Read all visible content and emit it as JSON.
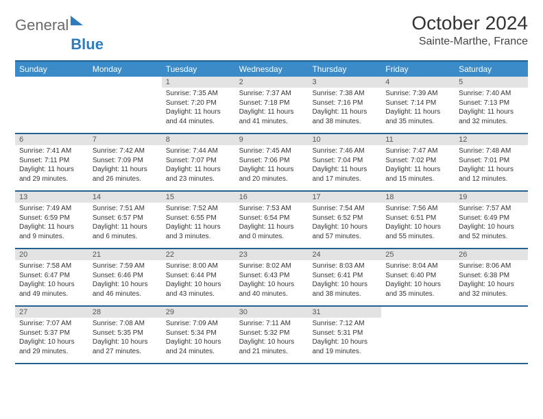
{
  "logo": {
    "general": "General",
    "blue": "Blue"
  },
  "title": "October 2024",
  "location": "Sainte-Marthe, France",
  "day_headers": [
    "Sunday",
    "Monday",
    "Tuesday",
    "Wednesday",
    "Thursday",
    "Friday",
    "Saturday"
  ],
  "colors": {
    "header_bar": "#3b8bc8",
    "rule": "#236090",
    "daynum_bg": "#e3e3e3",
    "logo_blue": "#2d7cc0"
  },
  "weeks": [
    [
      {
        "n": "",
        "sr": "",
        "ss": "",
        "dl": ""
      },
      {
        "n": "",
        "sr": "",
        "ss": "",
        "dl": ""
      },
      {
        "n": "1",
        "sr": "Sunrise: 7:35 AM",
        "ss": "Sunset: 7:20 PM",
        "dl": "Daylight: 11 hours and 44 minutes."
      },
      {
        "n": "2",
        "sr": "Sunrise: 7:37 AM",
        "ss": "Sunset: 7:18 PM",
        "dl": "Daylight: 11 hours and 41 minutes."
      },
      {
        "n": "3",
        "sr": "Sunrise: 7:38 AM",
        "ss": "Sunset: 7:16 PM",
        "dl": "Daylight: 11 hours and 38 minutes."
      },
      {
        "n": "4",
        "sr": "Sunrise: 7:39 AM",
        "ss": "Sunset: 7:14 PM",
        "dl": "Daylight: 11 hours and 35 minutes."
      },
      {
        "n": "5",
        "sr": "Sunrise: 7:40 AM",
        "ss": "Sunset: 7:13 PM",
        "dl": "Daylight: 11 hours and 32 minutes."
      }
    ],
    [
      {
        "n": "6",
        "sr": "Sunrise: 7:41 AM",
        "ss": "Sunset: 7:11 PM",
        "dl": "Daylight: 11 hours and 29 minutes."
      },
      {
        "n": "7",
        "sr": "Sunrise: 7:42 AM",
        "ss": "Sunset: 7:09 PM",
        "dl": "Daylight: 11 hours and 26 minutes."
      },
      {
        "n": "8",
        "sr": "Sunrise: 7:44 AM",
        "ss": "Sunset: 7:07 PM",
        "dl": "Daylight: 11 hours and 23 minutes."
      },
      {
        "n": "9",
        "sr": "Sunrise: 7:45 AM",
        "ss": "Sunset: 7:06 PM",
        "dl": "Daylight: 11 hours and 20 minutes."
      },
      {
        "n": "10",
        "sr": "Sunrise: 7:46 AM",
        "ss": "Sunset: 7:04 PM",
        "dl": "Daylight: 11 hours and 17 minutes."
      },
      {
        "n": "11",
        "sr": "Sunrise: 7:47 AM",
        "ss": "Sunset: 7:02 PM",
        "dl": "Daylight: 11 hours and 15 minutes."
      },
      {
        "n": "12",
        "sr": "Sunrise: 7:48 AM",
        "ss": "Sunset: 7:01 PM",
        "dl": "Daylight: 11 hours and 12 minutes."
      }
    ],
    [
      {
        "n": "13",
        "sr": "Sunrise: 7:49 AM",
        "ss": "Sunset: 6:59 PM",
        "dl": "Daylight: 11 hours and 9 minutes."
      },
      {
        "n": "14",
        "sr": "Sunrise: 7:51 AM",
        "ss": "Sunset: 6:57 PM",
        "dl": "Daylight: 11 hours and 6 minutes."
      },
      {
        "n": "15",
        "sr": "Sunrise: 7:52 AM",
        "ss": "Sunset: 6:55 PM",
        "dl": "Daylight: 11 hours and 3 minutes."
      },
      {
        "n": "16",
        "sr": "Sunrise: 7:53 AM",
        "ss": "Sunset: 6:54 PM",
        "dl": "Daylight: 11 hours and 0 minutes."
      },
      {
        "n": "17",
        "sr": "Sunrise: 7:54 AM",
        "ss": "Sunset: 6:52 PM",
        "dl": "Daylight: 10 hours and 57 minutes."
      },
      {
        "n": "18",
        "sr": "Sunrise: 7:56 AM",
        "ss": "Sunset: 6:51 PM",
        "dl": "Daylight: 10 hours and 55 minutes."
      },
      {
        "n": "19",
        "sr": "Sunrise: 7:57 AM",
        "ss": "Sunset: 6:49 PM",
        "dl": "Daylight: 10 hours and 52 minutes."
      }
    ],
    [
      {
        "n": "20",
        "sr": "Sunrise: 7:58 AM",
        "ss": "Sunset: 6:47 PM",
        "dl": "Daylight: 10 hours and 49 minutes."
      },
      {
        "n": "21",
        "sr": "Sunrise: 7:59 AM",
        "ss": "Sunset: 6:46 PM",
        "dl": "Daylight: 10 hours and 46 minutes."
      },
      {
        "n": "22",
        "sr": "Sunrise: 8:00 AM",
        "ss": "Sunset: 6:44 PM",
        "dl": "Daylight: 10 hours and 43 minutes."
      },
      {
        "n": "23",
        "sr": "Sunrise: 8:02 AM",
        "ss": "Sunset: 6:43 PM",
        "dl": "Daylight: 10 hours and 40 minutes."
      },
      {
        "n": "24",
        "sr": "Sunrise: 8:03 AM",
        "ss": "Sunset: 6:41 PM",
        "dl": "Daylight: 10 hours and 38 minutes."
      },
      {
        "n": "25",
        "sr": "Sunrise: 8:04 AM",
        "ss": "Sunset: 6:40 PM",
        "dl": "Daylight: 10 hours and 35 minutes."
      },
      {
        "n": "26",
        "sr": "Sunrise: 8:06 AM",
        "ss": "Sunset: 6:38 PM",
        "dl": "Daylight: 10 hours and 32 minutes."
      }
    ],
    [
      {
        "n": "27",
        "sr": "Sunrise: 7:07 AM",
        "ss": "Sunset: 5:37 PM",
        "dl": "Daylight: 10 hours and 29 minutes."
      },
      {
        "n": "28",
        "sr": "Sunrise: 7:08 AM",
        "ss": "Sunset: 5:35 PM",
        "dl": "Daylight: 10 hours and 27 minutes."
      },
      {
        "n": "29",
        "sr": "Sunrise: 7:09 AM",
        "ss": "Sunset: 5:34 PM",
        "dl": "Daylight: 10 hours and 24 minutes."
      },
      {
        "n": "30",
        "sr": "Sunrise: 7:11 AM",
        "ss": "Sunset: 5:32 PM",
        "dl": "Daylight: 10 hours and 21 minutes."
      },
      {
        "n": "31",
        "sr": "Sunrise: 7:12 AM",
        "ss": "Sunset: 5:31 PM",
        "dl": "Daylight: 10 hours and 19 minutes."
      },
      {
        "n": "",
        "sr": "",
        "ss": "",
        "dl": ""
      },
      {
        "n": "",
        "sr": "",
        "ss": "",
        "dl": ""
      }
    ]
  ]
}
